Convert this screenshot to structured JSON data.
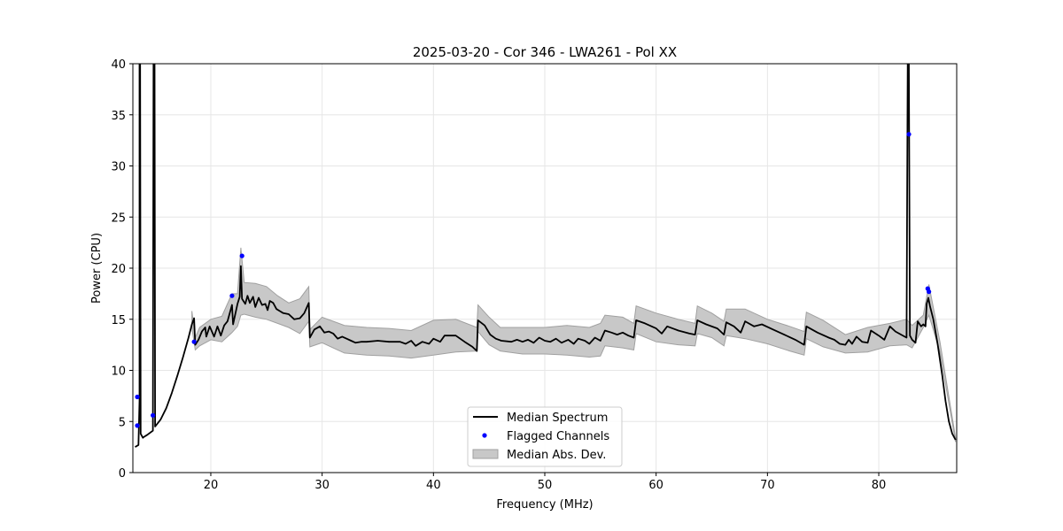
{
  "chart_data": {
    "type": "line",
    "title": "2025-03-20 - Cor 346 - LWA261 - Pol XX",
    "xlabel": "Frequency (MHz)",
    "ylabel": "Power (CPU)",
    "xlim": [
      13,
      87
    ],
    "ylim": [
      0,
      40
    ],
    "xticks": [
      20,
      30,
      40,
      50,
      60,
      70,
      80
    ],
    "yticks": [
      0,
      5,
      10,
      15,
      20,
      25,
      30,
      35,
      40
    ],
    "grid": true,
    "legend_position": "bottom-center",
    "colors": {
      "line": "#000000",
      "flagged": "#0000ff",
      "band_fill": "#c8c8c8",
      "band_edge": "#a0a0a0",
      "grid": "#e6e6e6"
    },
    "legend": [
      "Median Spectrum",
      "Flagged Channels",
      "Median Abs. Dev."
    ],
    "series": [
      {
        "name": "Median Spectrum",
        "points": [
          [
            13.2,
            2.5
          ],
          [
            13.5,
            2.7
          ],
          [
            13.6,
            7.0
          ],
          [
            13.6,
            40
          ],
          [
            13.65,
            40
          ],
          [
            13.7,
            3.8
          ],
          [
            13.9,
            3.4
          ],
          [
            14.0,
            3.5
          ],
          [
            14.3,
            3.7
          ],
          [
            14.8,
            4.1
          ],
          [
            14.85,
            40
          ],
          [
            14.95,
            40
          ],
          [
            15.0,
            4.5
          ],
          [
            15.5,
            5.2
          ],
          [
            16.0,
            6.3
          ],
          [
            16.5,
            7.8
          ],
          [
            17.0,
            9.5
          ],
          [
            17.5,
            11.3
          ],
          [
            18.0,
            13.2
          ],
          [
            18.3,
            14.5
          ],
          [
            18.5,
            15.1
          ],
          [
            18.6,
            12.5
          ],
          [
            18.9,
            13.0
          ],
          [
            19.2,
            13.8
          ],
          [
            19.5,
            14.2
          ],
          [
            19.6,
            13.3
          ],
          [
            19.9,
            14.3
          ],
          [
            20.3,
            13.3
          ],
          [
            20.6,
            14.3
          ],
          [
            20.9,
            13.4
          ],
          [
            21.2,
            14.4
          ],
          [
            21.5,
            14.8
          ],
          [
            21.9,
            16.4
          ],
          [
            22.0,
            14.5
          ],
          [
            22.4,
            16.5
          ],
          [
            22.6,
            17.2
          ],
          [
            22.7,
            20.2
          ],
          [
            22.8,
            17.0
          ],
          [
            23.1,
            16.5
          ],
          [
            23.3,
            17.3
          ],
          [
            23.5,
            16.6
          ],
          [
            23.8,
            17.2
          ],
          [
            24.0,
            16.2
          ],
          [
            24.3,
            17.1
          ],
          [
            24.6,
            16.4
          ],
          [
            24.9,
            16.5
          ],
          [
            25.1,
            15.9
          ],
          [
            25.3,
            16.8
          ],
          [
            25.6,
            16.6
          ],
          [
            25.9,
            16.0
          ],
          [
            26.2,
            15.8
          ],
          [
            26.5,
            15.6
          ],
          [
            27.0,
            15.5
          ],
          [
            27.5,
            15.0
          ],
          [
            28.0,
            15.1
          ],
          [
            28.4,
            15.6
          ],
          [
            28.8,
            16.6
          ],
          [
            28.9,
            13.2
          ],
          [
            29.3,
            14.0
          ],
          [
            29.8,
            14.3
          ],
          [
            30.2,
            13.7
          ],
          [
            30.6,
            13.8
          ],
          [
            31.0,
            13.6
          ],
          [
            31.4,
            13.1
          ],
          [
            31.8,
            13.3
          ],
          [
            32.2,
            13.1
          ],
          [
            32.6,
            12.9
          ],
          [
            33.0,
            12.7
          ],
          [
            33.5,
            12.8
          ],
          [
            34.0,
            12.8
          ],
          [
            35.0,
            12.9
          ],
          [
            36.0,
            12.8
          ],
          [
            37.0,
            12.8
          ],
          [
            37.5,
            12.6
          ],
          [
            38.0,
            12.9
          ],
          [
            38.4,
            12.4
          ],
          [
            39.0,
            12.8
          ],
          [
            39.6,
            12.6
          ],
          [
            40.0,
            13.1
          ],
          [
            40.6,
            12.8
          ],
          [
            41.0,
            13.4
          ],
          [
            42.0,
            13.4
          ],
          [
            42.8,
            12.8
          ],
          [
            43.5,
            12.3
          ],
          [
            43.9,
            11.9
          ],
          [
            44.0,
            14.9
          ],
          [
            44.6,
            14.4
          ],
          [
            45.1,
            13.5
          ],
          [
            45.6,
            13.1
          ],
          [
            46.1,
            12.9
          ],
          [
            47.0,
            12.8
          ],
          [
            47.5,
            13.0
          ],
          [
            48.0,
            12.8
          ],
          [
            48.5,
            13.0
          ],
          [
            49.0,
            12.7
          ],
          [
            49.5,
            13.2
          ],
          [
            50.0,
            12.9
          ],
          [
            50.5,
            12.8
          ],
          [
            51.0,
            13.1
          ],
          [
            51.5,
            12.7
          ],
          [
            52.1,
            13.0
          ],
          [
            52.6,
            12.6
          ],
          [
            53.0,
            13.1
          ],
          [
            53.6,
            12.9
          ],
          [
            54.0,
            12.6
          ],
          [
            54.5,
            13.2
          ],
          [
            55.0,
            12.9
          ],
          [
            55.4,
            13.9
          ],
          [
            56.0,
            13.7
          ],
          [
            56.5,
            13.5
          ],
          [
            57.0,
            13.7
          ],
          [
            57.5,
            13.4
          ],
          [
            58.0,
            13.2
          ],
          [
            58.2,
            14.9
          ],
          [
            59.0,
            14.6
          ],
          [
            60.0,
            14.1
          ],
          [
            60.5,
            13.6
          ],
          [
            61.0,
            14.3
          ],
          [
            62.0,
            13.9
          ],
          [
            63.0,
            13.6
          ],
          [
            63.5,
            13.5
          ],
          [
            63.7,
            14.9
          ],
          [
            64.5,
            14.5
          ],
          [
            65.5,
            14.1
          ],
          [
            66.1,
            13.5
          ],
          [
            66.3,
            14.7
          ],
          [
            67.0,
            14.3
          ],
          [
            67.6,
            13.7
          ],
          [
            68.0,
            14.8
          ],
          [
            68.8,
            14.3
          ],
          [
            69.5,
            14.5
          ],
          [
            70.5,
            14.0
          ],
          [
            71.5,
            13.5
          ],
          [
            72.5,
            13.0
          ],
          [
            73.3,
            12.5
          ],
          [
            73.5,
            14.3
          ],
          [
            74.5,
            13.7
          ],
          [
            75.5,
            13.2
          ],
          [
            76.0,
            13.0
          ],
          [
            76.5,
            12.6
          ],
          [
            77.0,
            12.5
          ],
          [
            77.3,
            13.0
          ],
          [
            77.6,
            12.6
          ],
          [
            78.0,
            13.3
          ],
          [
            78.5,
            12.8
          ],
          [
            79.0,
            12.7
          ],
          [
            79.3,
            13.9
          ],
          [
            80.0,
            13.4
          ],
          [
            80.5,
            13.0
          ],
          [
            81.0,
            14.3
          ],
          [
            81.5,
            13.8
          ],
          [
            82.0,
            13.5
          ],
          [
            82.5,
            13.2
          ],
          [
            82.6,
            40
          ],
          [
            82.7,
            40
          ],
          [
            82.8,
            13.4
          ],
          [
            83.0,
            13.0
          ],
          [
            83.3,
            12.7
          ],
          [
            83.5,
            14.8
          ],
          [
            83.8,
            14.3
          ],
          [
            84.0,
            14.5
          ],
          [
            84.2,
            14.3
          ],
          [
            84.3,
            16.5
          ],
          [
            84.45,
            17.1
          ],
          [
            84.6,
            16.3
          ],
          [
            84.9,
            15.0
          ],
          [
            85.3,
            12.5
          ],
          [
            85.7,
            9.5
          ],
          [
            86.0,
            7.0
          ],
          [
            86.3,
            5.0
          ],
          [
            86.6,
            3.8
          ],
          [
            86.9,
            3.2
          ]
        ]
      }
    ],
    "band": {
      "name": "Median Abs. Dev.",
      "x": [
        18.3,
        18.6,
        19.0,
        20.0,
        21.0,
        21.9,
        22.4,
        22.7,
        23.0,
        24.0,
        25.0,
        26.0,
        27.0,
        28.0,
        28.8,
        28.9,
        30.0,
        32.0,
        34.0,
        36.0,
        38.0,
        40.0,
        42.0,
        43.9,
        44.0,
        45.0,
        46.0,
        48.0,
        50.0,
        52.0,
        54.0,
        55.0,
        55.4,
        57.0,
        58.0,
        58.2,
        60.0,
        62.0,
        63.5,
        63.7,
        65.0,
        66.1,
        66.3,
        68.0,
        70.0,
        72.0,
        73.3,
        73.5,
        75.0,
        77.0,
        79.0,
        81.0,
        82.5,
        83.0,
        84.0,
        84.5,
        85.5,
        86.9
      ],
      "lower": [
        14.2,
        12.0,
        12.4,
        13.0,
        12.8,
        13.7,
        14.3,
        15.4,
        15.5,
        15.2,
        15.0,
        14.6,
        14.2,
        13.6,
        14.8,
        12.3,
        12.7,
        11.7,
        11.5,
        11.4,
        11.2,
        11.5,
        11.8,
        11.9,
        13.8,
        12.5,
        11.9,
        11.6,
        11.6,
        11.5,
        11.3,
        11.4,
        12.4,
        12.2,
        12.0,
        13.6,
        12.8,
        12.5,
        12.4,
        13.6,
        13.2,
        12.4,
        13.4,
        13.1,
        12.6,
        11.9,
        11.5,
        13.1,
        12.3,
        11.7,
        11.8,
        12.4,
        12.5,
        12.2,
        14.2,
        15.4,
        11.8,
        3.0
      ],
      "upper": [
        15.8,
        13.2,
        14.2,
        15.0,
        15.3,
        17.5,
        17.5,
        22.0,
        18.6,
        18.5,
        18.2,
        17.3,
        16.6,
        17.0,
        18.2,
        14.0,
        15.2,
        14.4,
        14.2,
        14.1,
        13.9,
        14.9,
        15.0,
        14.2,
        16.4,
        15.2,
        14.2,
        14.2,
        14.2,
        14.4,
        14.2,
        14.6,
        15.4,
        15.2,
        14.6,
        16.3,
        15.6,
        15.0,
        14.6,
        16.3,
        15.6,
        14.8,
        16.0,
        16.0,
        15.0,
        14.3,
        13.8,
        15.7,
        14.9,
        13.5,
        14.2,
        14.6,
        15.0,
        14.4,
        15.4,
        18.4,
        12.8,
        3.4
      ]
    },
    "flagged": {
      "name": "Flagged Channels",
      "points": [
        [
          13.4,
          7.4
        ],
        [
          13.4,
          4.6
        ],
        [
          14.8,
          5.6
        ],
        [
          18.5,
          12.8
        ],
        [
          21.9,
          17.3
        ],
        [
          22.8,
          21.2
        ],
        [
          82.7,
          33.1
        ],
        [
          84.4,
          18.0
        ],
        [
          84.5,
          17.7
        ]
      ]
    }
  }
}
